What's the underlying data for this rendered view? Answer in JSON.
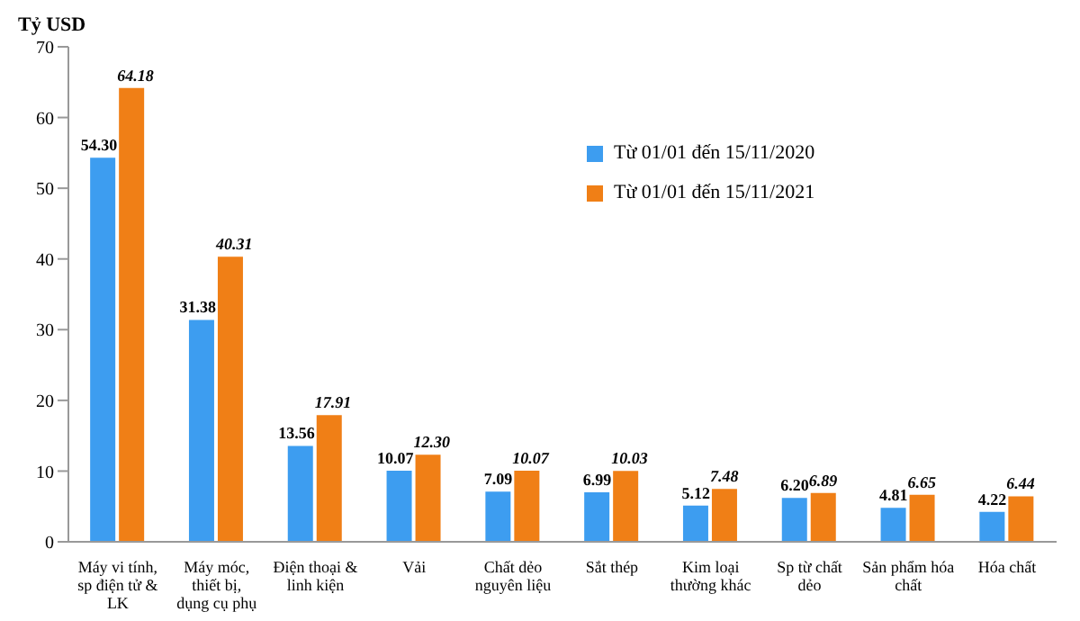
{
  "chart_data": {
    "type": "bar",
    "ylabel": "Tỷ USD",
    "categories": [
      "Máy vi tính, sp điện tử & LK",
      "Máy móc, thiết bị, dụng cụ phụ",
      "Điện thoại & linh kiện",
      "Vải",
      "Chất dẻo nguyên liệu",
      "Sắt thép",
      "Kim loại thường khác",
      "Sp từ chất dẻo",
      "Sản phẩm hóa chất",
      "Hóa chất"
    ],
    "series": [
      {
        "name": "Từ 01/01 đến 15/11/2020",
        "color": "#3d9df0",
        "values": [
          54.3,
          31.38,
          13.56,
          10.07,
          7.09,
          6.99,
          5.12,
          6.2,
          4.81,
          4.22
        ],
        "value_labels": [
          "54.30",
          "31.38",
          "13.56",
          "10.07",
          "7.09",
          "6.99",
          "5.12",
          "6.20",
          "4.81",
          "4.22"
        ]
      },
      {
        "name": "Từ 01/01 đến 15/11/2021",
        "color": "#f07f16",
        "values": [
          64.18,
          40.31,
          17.91,
          12.3,
          10.07,
          10.03,
          7.48,
          6.89,
          6.65,
          6.44
        ],
        "value_labels": [
          "64.18",
          "40.31",
          "17.91",
          "12.30",
          "10.07",
          "10.03",
          "7.48",
          "6.89",
          "6.65",
          "6.44"
        ]
      }
    ],
    "ylim": [
      0,
      70
    ],
    "yticks": [
      0,
      10,
      20,
      30,
      40,
      50,
      60,
      70
    ],
    "grid": false,
    "legend": "top right",
    "data_labels": true
  }
}
